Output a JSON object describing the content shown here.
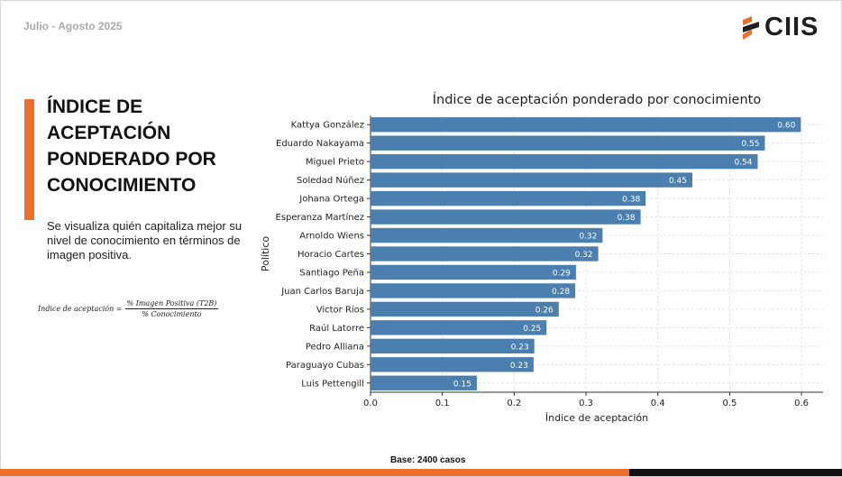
{
  "header": {
    "date": "Julio - Agosto 2025",
    "logo_text": "CIIS"
  },
  "left_panel": {
    "title": "ÍNDICE DE ACEPTACIÓN PONDERADO POR CONOCIMIENTO",
    "description": "Se visualiza quién capitaliza mejor su nivel de conocimiento en términos de imagen positiva.",
    "formula": {
      "lhs": "Índice de aceptación =",
      "numerator": "% Imagen Positiva (T2B)",
      "denominator": "% Conocimiento"
    }
  },
  "footer": {
    "base": "Base: 2400 casos"
  },
  "colors": {
    "accent": "#ec6f2d",
    "bar": "#4a7fb0",
    "dark": "#111111"
  },
  "chart_data": {
    "type": "bar",
    "orientation": "horizontal",
    "title": "Índice de aceptación ponderado por conocimiento",
    "xlabel": "Índice de aceptación",
    "ylabel": "Político",
    "xlim": [
      0,
      0.63
    ],
    "xticks": [
      "0.0",
      "0.1",
      "0.2",
      "0.3",
      "0.4",
      "0.5",
      "0.6"
    ],
    "grid": true,
    "categories": [
      "Kattya González",
      "Eduardo Nakayama",
      "Miguel Prieto",
      "Soledad Núñez",
      "Johana Ortega",
      "Esperanza Martínez",
      "Arnoldo Wiens",
      "Horacio Cartes",
      "Santiago Peña",
      "Juan Carlos Baruja",
      "Victor Ríos",
      "Raúl Latorre",
      "Pedro Alliana",
      "Paraguayo Cubas",
      "Luis Pettengill"
    ],
    "values": [
      0.599,
      0.549,
      0.539,
      0.448,
      0.383,
      0.376,
      0.323,
      0.317,
      0.286,
      0.285,
      0.262,
      0.245,
      0.228,
      0.227,
      0.148
    ],
    "value_labels": [
      "0.60",
      "0.55",
      "0.54",
      "0.45",
      "0.38",
      "0.38",
      "0.32",
      "0.32",
      "0.29",
      "0.28",
      "0.26",
      "0.25",
      "0.23",
      "0.23",
      "0.15"
    ]
  }
}
